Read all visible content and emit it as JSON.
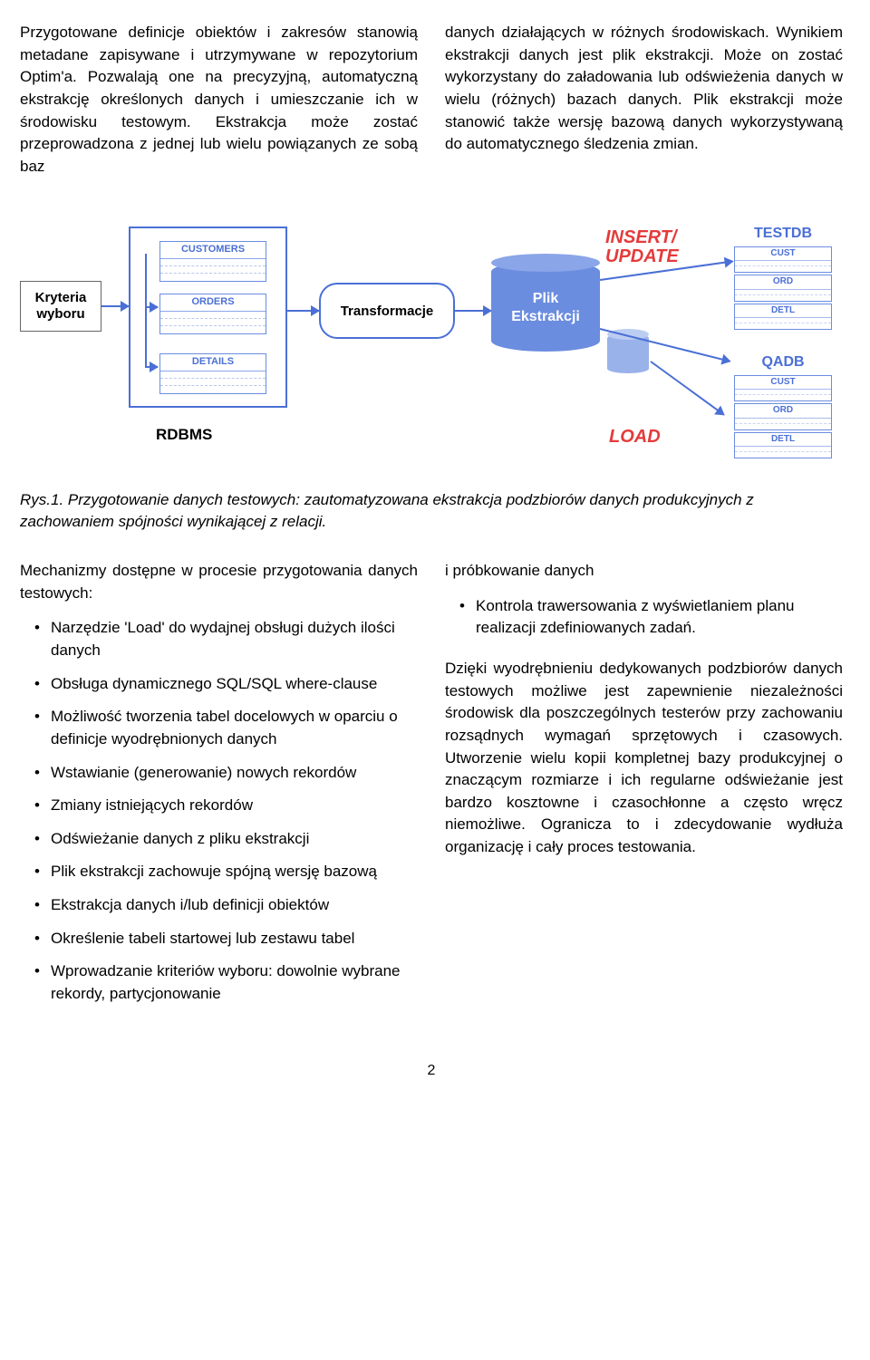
{
  "para1_left": "Przygotowane definicje obiektów i zakresów stanowią metadane zapisywane i utrzymywane w repozytorium Optim'a. Pozwalają one na precyzyjną, automatyczną ekstrakcję określonych danych i umieszczanie ich w środowisku testowym. Ekstrakcja może zostać przeprowadzona z jednej lub wielu powiązanych ze sobą baz",
  "para1_right": "danych działających w różnych środowiskach. Wynikiem ekstrakcji danych jest plik ekstrakcji. Może on zostać wykorzystany do załadowania lub odświeżenia danych w wielu (różnych) bazach danych. Plik ekstrakcji może stanowić także wersję bazową danych wykorzystywaną do automatycznego śledzenia zmian.",
  "diagram": {
    "kryteria": "Kryteria wyboru",
    "tables": {
      "customers": "CUSTOMERS",
      "orders": "ORDERS",
      "details": "DETAILS"
    },
    "rdbms": "RDBMS",
    "transform": "Transformacje",
    "plik_l1": "Plik",
    "plik_l2": "Ekstrakcji",
    "insert_update_l1": "INSERT/",
    "insert_update_l2": "UPDATE",
    "load": "LOAD",
    "testdb": "TESTDB",
    "qadb": "QADB",
    "mini": {
      "cust": "CUST",
      "ord": "ORD",
      "detl": "DETL"
    }
  },
  "caption": "Rys.1. Przygotowanie danych testowych: zautomatyzowana ekstrakcja podzbiorów danych produkcyjnych z zachowaniem spójności wynikającej z relacji.",
  "left_intro": "Mechanizmy dostępne w procesie przygotowania danych testowych:",
  "left_list": [
    "Narzędzie 'Load' do wydajnej obsługi dużych ilości danych",
    "Obsługa dynamicznego SQL/SQL where-clause",
    "Możliwość tworzenia tabel docelowych w oparciu o definicje wyodrębnionych danych",
    "Wstawianie (generowanie) nowych rekordów",
    "Zmiany istniejących rekordów",
    "Odświeżanie danych z pliku ekstrakcji",
    "Plik ekstrakcji zachowuje spójną wersję bazową",
    "Ekstrakcja danych i/lub definicji obiektów",
    "Określenie tabeli startowej lub zestawu tabel",
    "Wprowadzanie kriteriów wyboru: dowolnie wybrane rekordy, partycjonowanie"
  ],
  "right_cont": "i próbkowanie danych",
  "right_bullet": "Kontrola trawersowania z wyświetlaniem planu realizacji zdefiniowanych zadań.",
  "right_para": "Dzięki wyodrębnieniu dedykowanych podzbiorów danych testowych możliwe jest zapewnienie niezależności środowisk dla poszczególnych testerów przy zachowaniu rozsądnych wymagań sprzętowych i czasowych. Utworzenie wielu kopii kompletnej bazy produkcyjnej o znaczącym rozmiarze i ich regularne odświeżanie jest bardzo kosztowne i czasochłonne a często wręcz niemożliwe. Ogranicza to i zdecydowanie wydłuża organizację i cały proces testowania.",
  "pagenum": "2"
}
